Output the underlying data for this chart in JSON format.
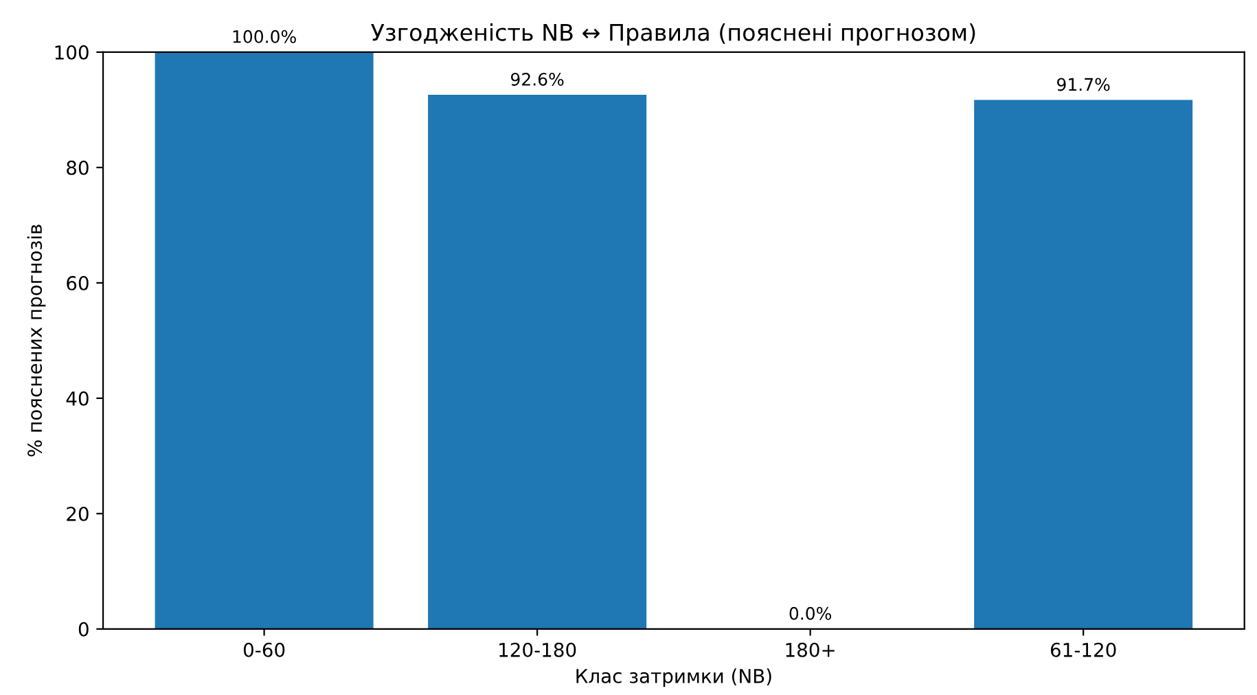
{
  "chart_data": {
    "type": "bar",
    "title": "Узгодженість NB ↔ Правила (пояснені прогнозом)",
    "xlabel": "Клас затримки (NB)",
    "ylabel": "% пояснених прогнозів",
    "categories": [
      "0-60",
      "120-180",
      "180+",
      "61-120"
    ],
    "values": [
      100.0,
      92.6,
      0.0,
      91.7
    ],
    "value_labels": [
      "100.0%",
      "92.6%",
      "0.0%",
      "91.7%"
    ],
    "color": "#1f77b4",
    "ylim": [
      0,
      100
    ],
    "yticks": [
      0,
      20,
      40,
      60,
      80,
      100
    ],
    "grid": false,
    "legend": false
  }
}
